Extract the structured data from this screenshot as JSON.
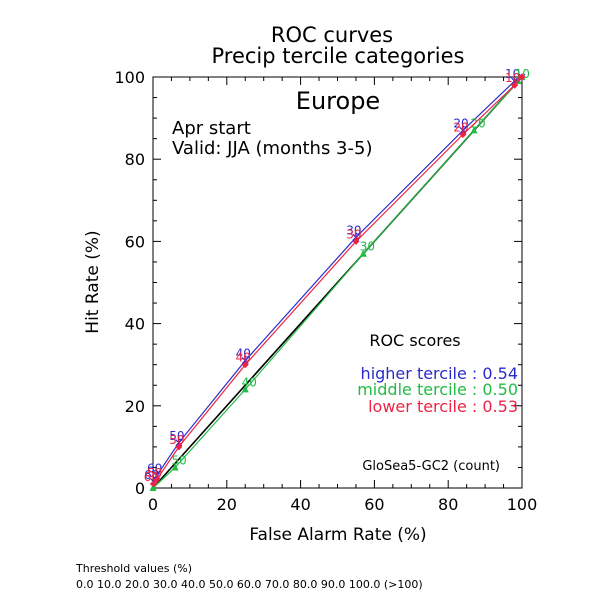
{
  "chart_data": {
    "type": "line",
    "title": "ROC curves",
    "subtitle": "Precip tercile categories",
    "region": "Europe",
    "start_label": "Apr start",
    "valid_label": "Valid: JJA (months 3-5)",
    "xlabel": "False Alarm Rate (%)",
    "ylabel": "Hit Rate (%)",
    "xlim": [
      0,
      100
    ],
    "ylim": [
      0,
      100
    ],
    "x_ticks": [
      "0",
      "20",
      "40",
      "60",
      "80",
      "100"
    ],
    "y_ticks": [
      "0",
      "20",
      "40",
      "60",
      "80",
      "100"
    ],
    "grid": false,
    "diagonal": true,
    "series": [
      {
        "name": "higher tercile",
        "color": "#2a2acc",
        "marker": "star",
        "points": [
          {
            "x": 0.2,
            "y": 1.5,
            "label": "60"
          },
          {
            "x": 1,
            "y": 3,
            "label": "60"
          },
          {
            "x": 7,
            "y": 11,
            "label": "50"
          },
          {
            "x": 25,
            "y": 31,
            "label": "40"
          },
          {
            "x": 55,
            "y": 61,
            "label": "30"
          },
          {
            "x": 84,
            "y": 87,
            "label": "20"
          },
          {
            "x": 98,
            "y": 99,
            "label": "10"
          },
          {
            "x": 100,
            "y": 100,
            "label": ""
          }
        ]
      },
      {
        "name": "middle tercile",
        "color": "#22bb44",
        "marker": "triangle",
        "points": [
          {
            "x": 0,
            "y": 0,
            "label": ""
          },
          {
            "x": 6,
            "y": 5,
            "label": "50"
          },
          {
            "x": 25,
            "y": 24,
            "label": "40"
          },
          {
            "x": 57,
            "y": 57,
            "label": "30"
          },
          {
            "x": 87,
            "y": 87,
            "label": "20"
          },
          {
            "x": 99,
            "y": 99,
            "label": "10"
          },
          {
            "x": 100,
            "y": 100,
            "label": ""
          }
        ]
      },
      {
        "name": "lower tercile",
        "color": "#ee2244",
        "marker": "diamond",
        "points": [
          {
            "x": 0.1,
            "y": 1,
            "label": "60"
          },
          {
            "x": 1,
            "y": 2,
            "label": "50"
          },
          {
            "x": 7,
            "y": 10,
            "label": "50"
          },
          {
            "x": 25,
            "y": 30,
            "label": "40"
          },
          {
            "x": 55,
            "y": 60,
            "label": "30"
          },
          {
            "x": 84,
            "y": 86,
            "label": "20"
          },
          {
            "x": 98,
            "y": 98,
            "label": "10"
          },
          {
            "x": 100,
            "y": 100,
            "label": ""
          }
        ]
      }
    ],
    "scores_title": "ROC scores",
    "scores": [
      {
        "text": "higher tercile : 0.54",
        "color": "#2a2acc"
      },
      {
        "text": "middle tercile : 0.50",
        "color": "#22bb44"
      },
      {
        "text": "lower tercile : 0.53",
        "color": "#ee2244"
      }
    ],
    "model_label": "GloSea5-GC2 (count)"
  },
  "footer": {
    "threshold_title": "Threshold values (%)",
    "threshold_values": "0.0 10.0 20.0 30.0 40.0 50.0 60.0 70.0 80.0 90.0 100.0 (>100)"
  }
}
